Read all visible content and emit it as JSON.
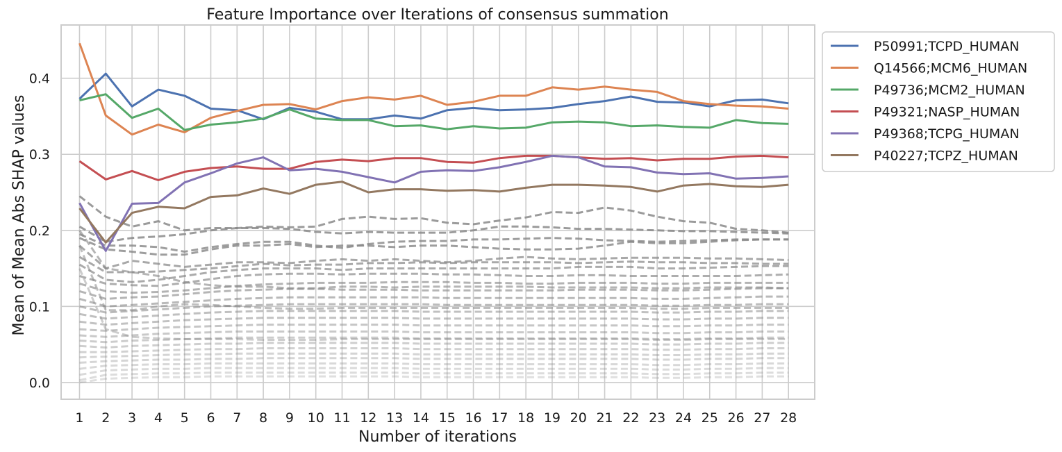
{
  "chart_data": {
    "type": "line",
    "title": "Feature Importance over Iterations of consensus summation",
    "xlabel": "Number of iterations",
    "ylabel": "Mean of Mean Abs SHAP values",
    "x": [
      1,
      2,
      3,
      4,
      5,
      6,
      7,
      8,
      9,
      10,
      11,
      12,
      13,
      14,
      15,
      16,
      17,
      18,
      19,
      20,
      21,
      22,
      23,
      24,
      25,
      26,
      27,
      28
    ],
    "ylim": [
      -0.022,
      0.47
    ],
    "yticks": [
      0.0,
      0.1,
      0.2,
      0.3,
      0.4
    ],
    "ytick_labels": [
      "0.0",
      "0.1",
      "0.2",
      "0.3",
      "0.4"
    ],
    "grid": true,
    "legend_position": "outside-right-top",
    "series": [
      {
        "name": "P50991;TCPD_HUMAN",
        "color": "#4c72b0",
        "style": "solid",
        "values": [
          0.373,
          0.406,
          0.363,
          0.385,
          0.377,
          0.36,
          0.358,
          0.346,
          0.361,
          0.356,
          0.346,
          0.346,
          0.351,
          0.347,
          0.358,
          0.361,
          0.358,
          0.359,
          0.361,
          0.366,
          0.37,
          0.376,
          0.369,
          0.368,
          0.363,
          0.371,
          0.372,
          0.367
        ]
      },
      {
        "name": "Q14566;MCM6_HUMAN",
        "color": "#dd8452",
        "style": "solid",
        "values": [
          0.446,
          0.351,
          0.326,
          0.339,
          0.329,
          0.348,
          0.357,
          0.365,
          0.366,
          0.359,
          0.37,
          0.375,
          0.372,
          0.377,
          0.365,
          0.369,
          0.377,
          0.377,
          0.388,
          0.385,
          0.389,
          0.385,
          0.382,
          0.37,
          0.366,
          0.364,
          0.363,
          0.36
        ]
      },
      {
        "name": "P49736;MCM2_HUMAN",
        "color": "#55a868",
        "style": "solid",
        "values": [
          0.371,
          0.379,
          0.348,
          0.36,
          0.332,
          0.339,
          0.342,
          0.347,
          0.359,
          0.347,
          0.345,
          0.345,
          0.337,
          0.338,
          0.333,
          0.337,
          0.334,
          0.335,
          0.342,
          0.343,
          0.342,
          0.337,
          0.338,
          0.336,
          0.335,
          0.345,
          0.341,
          0.34
        ]
      },
      {
        "name": "P49321;NASP_HUMAN",
        "color": "#c44e52",
        "style": "solid",
        "values": [
          0.291,
          0.267,
          0.278,
          0.266,
          0.277,
          0.282,
          0.284,
          0.281,
          0.281,
          0.29,
          0.293,
          0.291,
          0.295,
          0.295,
          0.29,
          0.289,
          0.295,
          0.298,
          0.298,
          0.296,
          0.294,
          0.295,
          0.292,
          0.294,
          0.294,
          0.297,
          0.298,
          0.296
        ]
      },
      {
        "name": "P49368;TCPG_HUMAN",
        "color": "#8172b3",
        "style": "solid",
        "values": [
          0.236,
          0.173,
          0.235,
          0.236,
          0.263,
          0.275,
          0.288,
          0.296,
          0.279,
          0.281,
          0.277,
          0.27,
          0.263,
          0.277,
          0.279,
          0.278,
          0.283,
          0.29,
          0.298,
          0.296,
          0.284,
          0.283,
          0.276,
          0.274,
          0.275,
          0.268,
          0.269,
          0.271
        ]
      },
      {
        "name": "P40227;TCPZ_HUMAN",
        "color": "#937860",
        "style": "solid",
        "values": [
          0.229,
          0.184,
          0.223,
          0.231,
          0.229,
          0.244,
          0.246,
          0.255,
          0.248,
          0.26,
          0.264,
          0.25,
          0.254,
          0.254,
          0.252,
          0.253,
          0.251,
          0.256,
          0.26,
          0.26,
          0.259,
          0.257,
          0.251,
          0.259,
          0.261,
          0.258,
          0.257,
          0.26
        ]
      }
    ],
    "background_series_note_style": "dashed",
    "background_series_color": "#888888",
    "background_series": [
      [
        0.245,
        0.218,
        0.205,
        0.212,
        0.2,
        0.203,
        0.203,
        0.205,
        0.204,
        0.205,
        0.215,
        0.218,
        0.215,
        0.216,
        0.21,
        0.208,
        0.213,
        0.217,
        0.224,
        0.223,
        0.23,
        0.226,
        0.218,
        0.212,
        0.21,
        0.202,
        0.2,
        0.197
      ],
      [
        0.205,
        0.185,
        0.19,
        0.192,
        0.195,
        0.2,
        0.203,
        0.203,
        0.202,
        0.198,
        0.196,
        0.198,
        0.197,
        0.197,
        0.197,
        0.2,
        0.205,
        0.205,
        0.204,
        0.202,
        0.202,
        0.201,
        0.2,
        0.199,
        0.199,
        0.198,
        0.197,
        0.196
      ],
      [
        0.195,
        0.18,
        0.18,
        0.178,
        0.172,
        0.178,
        0.182,
        0.185,
        0.185,
        0.18,
        0.177,
        0.182,
        0.185,
        0.186,
        0.186,
        0.188,
        0.188,
        0.189,
        0.19,
        0.189,
        0.187,
        0.186,
        0.185,
        0.186,
        0.187,
        0.188,
        0.188,
        0.188
      ],
      [
        0.19,
        0.175,
        0.172,
        0.168,
        0.168,
        0.175,
        0.18,
        0.18,
        0.182,
        0.178,
        0.18,
        0.18,
        0.178,
        0.18,
        0.18,
        0.178,
        0.176,
        0.175,
        0.175,
        0.176,
        0.18,
        0.185,
        0.183,
        0.183,
        0.185,
        0.187,
        0.188,
        0.188
      ],
      [
        0.18,
        0.15,
        0.16,
        0.156,
        0.152,
        0.155,
        0.158,
        0.158,
        0.157,
        0.16,
        0.162,
        0.16,
        0.162,
        0.16,
        0.158,
        0.16,
        0.163,
        0.165,
        0.163,
        0.162,
        0.163,
        0.164,
        0.164,
        0.164,
        0.163,
        0.163,
        0.162,
        0.161
      ],
      [
        0.165,
        0.145,
        0.145,
        0.146,
        0.148,
        0.15,
        0.153,
        0.156,
        0.154,
        0.155,
        0.155,
        0.157,
        0.157,
        0.158,
        0.157,
        0.158,
        0.158,
        0.158,
        0.158,
        0.157,
        0.158,
        0.159,
        0.158,
        0.158,
        0.157,
        0.157,
        0.156,
        0.156
      ],
      [
        0.155,
        0.135,
        0.132,
        0.135,
        0.14,
        0.145,
        0.148,
        0.15,
        0.15,
        0.15,
        0.148,
        0.15,
        0.15,
        0.15,
        0.15,
        0.15,
        0.15,
        0.15,
        0.15,
        0.152,
        0.152,
        0.152,
        0.15,
        0.15,
        0.151,
        0.152,
        0.153,
        0.153
      ],
      [
        0.14,
        0.13,
        0.128,
        0.127,
        0.131,
        0.136,
        0.14,
        0.142,
        0.143,
        0.143,
        0.142,
        0.143,
        0.143,
        0.143,
        0.142,
        0.142,
        0.141,
        0.14,
        0.14,
        0.141,
        0.141,
        0.14,
        0.14,
        0.14,
        0.14,
        0.14,
        0.141,
        0.142
      ],
      [
        0.13,
        0.12,
        0.118,
        0.119,
        0.121,
        0.124,
        0.127,
        0.129,
        0.13,
        0.131,
        0.131,
        0.131,
        0.132,
        0.132,
        0.132,
        0.131,
        0.131,
        0.13,
        0.13,
        0.131,
        0.131,
        0.131,
        0.13,
        0.13,
        0.131,
        0.131,
        0.131,
        0.131
      ],
      [
        0.12,
        0.11,
        0.112,
        0.113,
        0.116,
        0.119,
        0.121,
        0.122,
        0.123,
        0.123,
        0.122,
        0.122,
        0.122,
        0.121,
        0.121,
        0.121,
        0.121,
        0.121,
        0.121,
        0.122,
        0.122,
        0.122,
        0.121,
        0.121,
        0.122,
        0.123,
        0.124,
        0.124
      ],
      [
        0.11,
        0.1,
        0.102,
        0.104,
        0.106,
        0.108,
        0.11,
        0.111,
        0.112,
        0.112,
        0.112,
        0.112,
        0.112,
        0.112,
        0.111,
        0.111,
        0.111,
        0.111,
        0.111,
        0.111,
        0.111,
        0.111,
        0.11,
        0.11,
        0.111,
        0.112,
        0.113,
        0.113
      ],
      [
        0.1,
        0.092,
        0.094,
        0.096,
        0.098,
        0.1,
        0.101,
        0.102,
        0.103,
        0.103,
        0.103,
        0.103,
        0.103,
        0.103,
        0.102,
        0.102,
        0.102,
        0.102,
        0.102,
        0.102,
        0.102,
        0.102,
        0.101,
        0.101,
        0.102,
        0.102,
        0.103,
        0.103
      ],
      [
        0.09,
        0.084,
        0.086,
        0.088,
        0.09,
        0.092,
        0.093,
        0.094,
        0.094,
        0.094,
        0.094,
        0.094,
        0.094,
        0.093,
        0.093,
        0.093,
        0.093,
        0.093,
        0.093,
        0.093,
        0.093,
        0.093,
        0.092,
        0.092,
        0.093,
        0.093,
        0.094,
        0.094
      ],
      [
        0.08,
        0.076,
        0.078,
        0.08,
        0.082,
        0.083,
        0.084,
        0.085,
        0.085,
        0.085,
        0.085,
        0.085,
        0.085,
        0.084,
        0.084,
        0.084,
        0.084,
        0.084,
        0.084,
        0.084,
        0.084,
        0.084,
        0.083,
        0.083,
        0.084,
        0.084,
        0.085,
        0.085
      ],
      [
        0.07,
        0.068,
        0.07,
        0.072,
        0.073,
        0.074,
        0.075,
        0.076,
        0.076,
        0.076,
        0.076,
        0.076,
        0.076,
        0.075,
        0.075,
        0.075,
        0.075,
        0.075,
        0.075,
        0.075,
        0.075,
        0.075,
        0.074,
        0.074,
        0.075,
        0.075,
        0.076,
        0.076
      ],
      [
        0.062,
        0.06,
        0.062,
        0.064,
        0.065,
        0.066,
        0.067,
        0.067,
        0.067,
        0.067,
        0.067,
        0.067,
        0.067,
        0.066,
        0.066,
        0.066,
        0.066,
        0.066,
        0.066,
        0.066,
        0.066,
        0.066,
        0.065,
        0.065,
        0.066,
        0.066,
        0.067,
        0.067
      ],
      [
        0.055,
        0.053,
        0.055,
        0.056,
        0.057,
        0.058,
        0.059,
        0.059,
        0.059,
        0.059,
        0.059,
        0.059,
        0.059,
        0.058,
        0.058,
        0.058,
        0.058,
        0.058,
        0.058,
        0.058,
        0.058,
        0.058,
        0.057,
        0.057,
        0.058,
        0.058,
        0.059,
        0.059
      ],
      [
        0.048,
        0.046,
        0.048,
        0.049,
        0.05,
        0.051,
        0.051,
        0.052,
        0.052,
        0.052,
        0.052,
        0.052,
        0.052,
        0.051,
        0.051,
        0.051,
        0.051,
        0.051,
        0.051,
        0.051,
        0.051,
        0.051,
        0.05,
        0.05,
        0.051,
        0.051,
        0.052,
        0.052
      ],
      [
        0.04,
        0.04,
        0.041,
        0.042,
        0.043,
        0.044,
        0.044,
        0.045,
        0.045,
        0.045,
        0.045,
        0.045,
        0.045,
        0.044,
        0.044,
        0.044,
        0.044,
        0.044,
        0.044,
        0.044,
        0.044,
        0.044,
        0.043,
        0.043,
        0.044,
        0.044,
        0.045,
        0.045
      ],
      [
        0.033,
        0.034,
        0.035,
        0.036,
        0.037,
        0.037,
        0.038,
        0.038,
        0.038,
        0.038,
        0.038,
        0.038,
        0.038,
        0.037,
        0.037,
        0.037,
        0.037,
        0.037,
        0.037,
        0.037,
        0.037,
        0.037,
        0.036,
        0.036,
        0.037,
        0.037,
        0.038,
        0.038
      ],
      [
        0.026,
        0.028,
        0.029,
        0.03,
        0.03,
        0.031,
        0.031,
        0.032,
        0.032,
        0.032,
        0.032,
        0.032,
        0.032,
        0.031,
        0.031,
        0.031,
        0.031,
        0.031,
        0.031,
        0.031,
        0.031,
        0.031,
        0.03,
        0.03,
        0.031,
        0.031,
        0.032,
        0.032
      ],
      [
        0.018,
        0.022,
        0.023,
        0.024,
        0.024,
        0.025,
        0.025,
        0.025,
        0.025,
        0.025,
        0.025,
        0.025,
        0.025,
        0.024,
        0.024,
        0.024,
        0.024,
        0.024,
        0.024,
        0.024,
        0.024,
        0.024,
        0.023,
        0.023,
        0.024,
        0.024,
        0.025,
        0.025
      ],
      [
        0.01,
        0.016,
        0.017,
        0.018,
        0.018,
        0.019,
        0.019,
        0.019,
        0.019,
        0.019,
        0.019,
        0.019,
        0.019,
        0.018,
        0.018,
        0.018,
        0.018,
        0.018,
        0.018,
        0.018,
        0.018,
        0.018,
        0.017,
        0.017,
        0.018,
        0.018,
        0.019,
        0.019
      ],
      [
        0.003,
        0.01,
        0.011,
        0.012,
        0.012,
        0.013,
        0.013,
        0.013,
        0.013,
        0.013,
        0.013,
        0.013,
        0.013,
        0.012,
        0.012,
        0.012,
        0.012,
        0.012,
        0.012,
        0.012,
        0.012,
        0.012,
        0.011,
        0.011,
        0.012,
        0.012,
        0.013,
        0.013
      ],
      [
        0.0,
        0.005,
        0.006,
        0.007,
        0.007,
        0.008,
        0.008,
        0.008,
        0.008,
        0.008,
        0.008,
        0.008,
        0.008,
        0.007,
        0.007,
        0.007,
        0.007,
        0.007,
        0.007,
        0.007,
        0.007,
        0.007,
        0.006,
        0.006,
        0.007,
        0.007,
        0.008,
        0.008
      ],
      [
        0.2,
        0.15,
        0.145,
        0.14,
        0.132,
        0.128,
        0.126,
        0.126,
        0.124,
        0.124,
        0.126,
        0.126,
        0.125,
        0.126,
        0.126,
        0.126,
        0.126,
        0.126,
        0.125,
        0.125,
        0.125,
        0.125,
        0.124,
        0.124,
        0.125,
        0.125,
        0.125,
        0.124
      ],
      [
        0.18,
        0.095,
        0.095,
        0.1,
        0.103,
        0.102,
        0.1,
        0.098,
        0.097,
        0.097,
        0.098,
        0.098,
        0.098,
        0.098,
        0.098,
        0.098,
        0.098,
        0.098,
        0.098,
        0.098,
        0.098,
        0.098,
        0.097,
        0.097,
        0.098,
        0.098,
        0.098,
        0.098
      ],
      [
        0.15,
        0.07,
        0.06,
        0.058,
        0.057,
        0.057,
        0.057,
        0.056,
        0.056,
        0.056,
        0.057,
        0.057,
        0.057,
        0.057,
        0.057,
        0.057,
        0.057,
        0.057,
        0.057,
        0.057,
        0.057,
        0.057,
        0.056,
        0.056,
        0.057,
        0.057,
        0.057,
        0.057
      ]
    ]
  }
}
